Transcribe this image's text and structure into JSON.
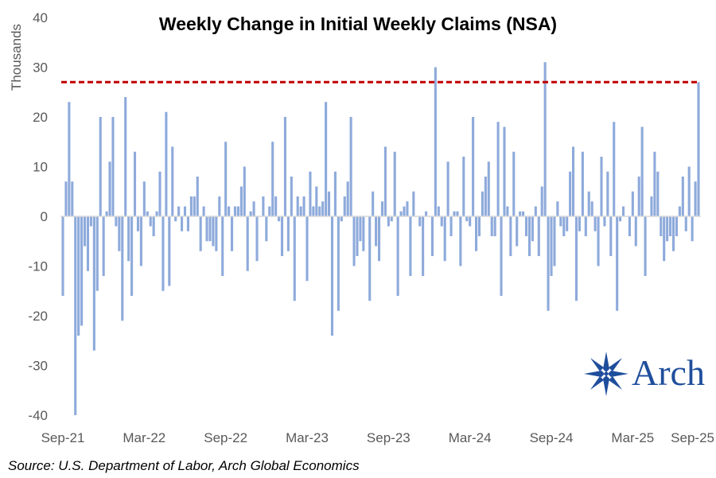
{
  "colors": {
    "bar": "#8eaadb",
    "reference": "#c00000",
    "zero": "#d9d9d9",
    "brand": "#1f4e9c"
  },
  "logo": {
    "text": "Arch",
    "icon": "compass-star-icon"
  },
  "source": "Source: U.S. Department of Labor, Arch Global Economics",
  "chart_data": {
    "type": "bar",
    "title": "Weekly Change in Initial Weekly Claims (NSA)",
    "ylabel": "Thousands",
    "xlabel": "",
    "ylim": [
      -40,
      40
    ],
    "yticks": [
      -40,
      -30,
      -20,
      -10,
      0,
      10,
      20,
      30,
      40
    ],
    "xtick_labels": [
      "Sep-21",
      "Mar-22",
      "Sep-22",
      "Mar-23",
      "Sep-23",
      "Mar-24",
      "Sep-24",
      "Mar-25",
      "Sep-25"
    ],
    "xtick_weeks": [
      0,
      26,
      52,
      78,
      104,
      130,
      156,
      182,
      208
    ],
    "reference_line": {
      "value": 27,
      "style": "dashed"
    },
    "grid": false,
    "values": [
      -16,
      7,
      23,
      7,
      -40,
      -24,
      -22,
      -6,
      -11,
      -2,
      -27,
      -15,
      20,
      -12,
      1,
      11,
      20,
      -2,
      -7,
      -21,
      24,
      -9,
      -16,
      13,
      -3,
      -10,
      7,
      1,
      -2,
      -4,
      1,
      9,
      -15,
      21,
      -14,
      14,
      -1,
      2,
      -3,
      2,
      -3,
      4,
      4,
      8,
      -7,
      2,
      -5,
      -5,
      -6,
      -7,
      4,
      -12,
      15,
      2,
      -7,
      2,
      2,
      6,
      10,
      -11,
      1,
      3,
      -9,
      0,
      4,
      -5,
      2,
      15,
      4,
      -1,
      -8,
      20,
      -7,
      8,
      -17,
      4,
      2,
      4,
      -13,
      9,
      2,
      6,
      2,
      3,
      23,
      5,
      -24,
      9,
      -19,
      -1,
      4,
      7,
      20,
      -10,
      -8,
      -5,
      -7,
      0,
      -17,
      5,
      -6,
      -9,
      3,
      14,
      -2,
      -1,
      13,
      -16,
      1,
      2,
      3,
      -12,
      5,
      0,
      -2,
      -12,
      1,
      0,
      -8,
      30,
      2,
      -2,
      -9,
      11,
      -4,
      1,
      1,
      -10,
      12,
      -1,
      -2,
      20,
      -7,
      -4,
      5,
      8,
      11,
      -4,
      -4,
      19,
      -16,
      18,
      2,
      -8,
      13,
      -6,
      1,
      1,
      -4,
      -8,
      -5,
      2,
      -8,
      6,
      31,
      -19,
      -12,
      -10,
      3,
      -2,
      -4,
      -3,
      9,
      14,
      -17,
      -3,
      13,
      -4,
      5,
      3,
      -3,
      -10,
      12,
      -2,
      9,
      -8,
      19,
      -19,
      -1,
      2,
      0,
      -4,
      5,
      -6,
      8,
      18,
      -12,
      0,
      4,
      13,
      9,
      -4,
      -9,
      -5,
      -4,
      -7,
      -4,
      2,
      8,
      -3,
      10,
      -5,
      7,
      27
    ]
  }
}
